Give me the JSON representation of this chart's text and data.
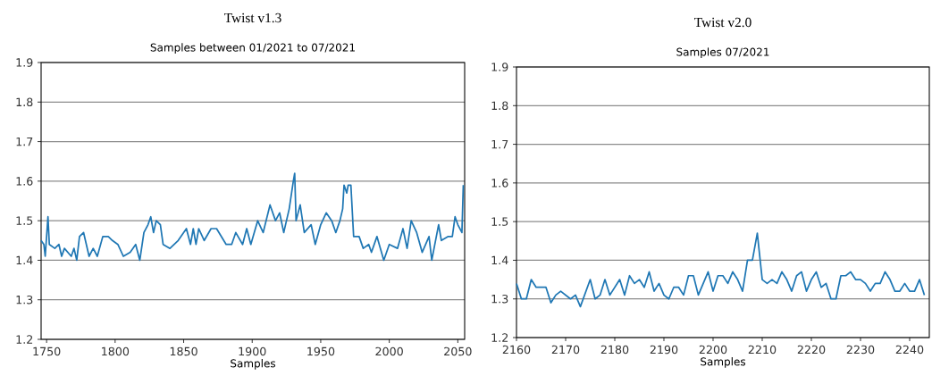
{
  "chart_data": [
    {
      "type": "line",
      "title": "Twist v1.3",
      "subtitle": "Samples between 01/2021 to 07/2021",
      "xlabel": "Samples",
      "color": "#1f77b4",
      "grid": "y",
      "x": [
        1746,
        1748,
        1749,
        1751,
        1752,
        1756,
        1759,
        1761,
        1763,
        1768,
        1770,
        1772,
        1774,
        1777,
        1781,
        1784,
        1787,
        1791,
        1795,
        1798,
        1802,
        1806,
        1811,
        1815,
        1818,
        1821,
        1824,
        1826,
        1828,
        1830,
        1833,
        1835,
        1840,
        1846,
        1852,
        1855,
        1857,
        1859,
        1861,
        1865,
        1870,
        1874,
        1881,
        1885,
        1888,
        1893,
        1896,
        1899,
        1904,
        1908,
        1913,
        1917,
        1920,
        1923,
        1927,
        1930,
        1931,
        1932,
        1935,
        1938,
        1943,
        1946,
        1950,
        1954,
        1958,
        1961,
        1964,
        1966,
        1967,
        1969,
        1970,
        1972,
        1974,
        1978,
        1981,
        1985,
        1987,
        1991,
        1996,
        2000,
        2006,
        2010,
        2013,
        2016,
        2020,
        2024,
        2029,
        2031,
        2036,
        2038,
        2043,
        2046,
        2048,
        2050,
        2053,
        2054
      ],
      "values": [
        1.45,
        1.44,
        1.41,
        1.51,
        1.44,
        1.43,
        1.44,
        1.41,
        1.43,
        1.41,
        1.43,
        1.4,
        1.46,
        1.47,
        1.41,
        1.43,
        1.41,
        1.46,
        1.46,
        1.45,
        1.44,
        1.41,
        1.42,
        1.44,
        1.4,
        1.47,
        1.49,
        1.51,
        1.47,
        1.5,
        1.49,
        1.44,
        1.43,
        1.45,
        1.48,
        1.44,
        1.48,
        1.44,
        1.48,
        1.45,
        1.48,
        1.48,
        1.44,
        1.44,
        1.47,
        1.44,
        1.48,
        1.44,
        1.5,
        1.47,
        1.54,
        1.5,
        1.52,
        1.47,
        1.53,
        1.6,
        1.62,
        1.5,
        1.54,
        1.47,
        1.49,
        1.44,
        1.49,
        1.52,
        1.5,
        1.47,
        1.5,
        1.53,
        1.59,
        1.57,
        1.59,
        1.59,
        1.46,
        1.46,
        1.43,
        1.44,
        1.42,
        1.46,
        1.4,
        1.44,
        1.43,
        1.48,
        1.43,
        1.5,
        1.47,
        1.42,
        1.46,
        1.4,
        1.49,
        1.45,
        1.46,
        1.46,
        1.51,
        1.49,
        1.47,
        1.59
      ],
      "xlim": [
        1746,
        2055
      ],
      "ylim": [
        1.2,
        1.9
      ],
      "xticks": [
        1750,
        1800,
        1850,
        1900,
        1950,
        2000,
        2050
      ],
      "yticks": [
        1.2,
        1.3,
        1.4,
        1.5,
        1.6,
        1.7,
        1.8,
        1.9
      ]
    },
    {
      "type": "line",
      "title": "Twist v2.0",
      "subtitle": "Samples 07/2021",
      "xlabel": "Samples",
      "color": "#1f77b4",
      "grid": "y",
      "x": [
        2160,
        2161,
        2162,
        2163,
        2164,
        2166,
        2167,
        2168,
        2169,
        2171,
        2172,
        2173,
        2175,
        2176,
        2177,
        2178,
        2179,
        2181,
        2182,
        2183,
        2184,
        2185,
        2186,
        2187,
        2188,
        2189,
        2190,
        2191,
        2192,
        2193,
        2194,
        2195,
        2196,
        2197,
        2199,
        2200,
        2201,
        2202,
        2203,
        2204,
        2205,
        2206,
        2207,
        2208,
        2209,
        2210,
        2211,
        2212,
        2213,
        2214,
        2215,
        2216,
        2217,
        2218,
        2219,
        2220,
        2221,
        2222,
        2223,
        2224,
        2225,
        2226,
        2227,
        2228,
        2229,
        2230,
        2231,
        2232,
        2233,
        2234,
        2235,
        2236,
        2237,
        2238,
        2239,
        2240,
        2241,
        2242,
        2243
      ],
      "values": [
        1.34,
        1.3,
        1.3,
        1.35,
        1.33,
        1.33,
        1.29,
        1.31,
        1.32,
        1.3,
        1.31,
        1.28,
        1.35,
        1.3,
        1.31,
        1.35,
        1.31,
        1.35,
        1.31,
        1.36,
        1.34,
        1.35,
        1.33,
        1.37,
        1.32,
        1.34,
        1.31,
        1.3,
        1.33,
        1.33,
        1.31,
        1.36,
        1.36,
        1.31,
        1.37,
        1.32,
        1.36,
        1.36,
        1.34,
        1.37,
        1.35,
        1.32,
        1.4,
        1.4,
        1.47,
        1.35,
        1.34,
        1.35,
        1.34,
        1.37,
        1.35,
        1.32,
        1.36,
        1.37,
        1.32,
        1.35,
        1.37,
        1.33,
        1.34,
        1.3,
        1.3,
        1.36,
        1.36,
        1.37,
        1.35,
        1.35,
        1.34,
        1.32,
        1.34,
        1.34,
        1.37,
        1.35,
        1.32,
        1.32,
        1.34,
        1.32,
        1.32,
        1.35,
        1.31
      ],
      "xlim": [
        2160,
        2244
      ],
      "ylim": [
        1.2,
        1.9
      ],
      "xticks": [
        2160,
        2170,
        2180,
        2190,
        2200,
        2210,
        2220,
        2230,
        2240
      ],
      "yticks": [
        1.2,
        1.3,
        1.4,
        1.5,
        1.6,
        1.7,
        1.8,
        1.9
      ]
    }
  ]
}
